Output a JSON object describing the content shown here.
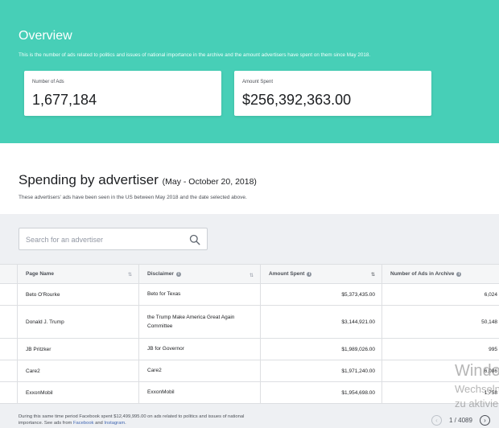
{
  "overview": {
    "title": "Overview",
    "description": "This is the number of ads related to politics and issues of national importance in the archive and the amount advertisers have spent on them since May 2018.",
    "cards": [
      {
        "label": "Number of Ads",
        "value": "1,677,184"
      },
      {
        "label": "Amount Spent",
        "value": "$256,392,363.00"
      }
    ]
  },
  "spending": {
    "title": "Spending by advertiser",
    "date_range": "(May - October 20, 2018)",
    "description": "These advertisers' ads have been seen in the US between May 2018 and the date selected above."
  },
  "search": {
    "placeholder": "Search for an advertiser"
  },
  "table": {
    "headers": [
      "Page Name",
      "Disclaimer",
      "Amount Spent",
      "Number of Ads in Archive"
    ],
    "sort_icon": "⇅",
    "rows": [
      {
        "page": "Beto O'Rourke",
        "disclaimer": "Beto for Texas",
        "amount": "$5,373,435.00",
        "ads": "6,024"
      },
      {
        "page": "Donald J. Trump",
        "disclaimer": "the Trump Make America Great Again Committee",
        "amount": "$3,144,921.00",
        "ads": "50,148"
      },
      {
        "page": "JB Pritzker",
        "disclaimer": "JB for Governor",
        "amount": "$1,989,026.00",
        "ads": "995"
      },
      {
        "page": "Care2",
        "disclaimer": "Care2",
        "amount": "$1,971,240.00",
        "ads": "6,086"
      },
      {
        "page": "ExxonMobil",
        "disclaimer": "ExxonMobil",
        "amount": "$1,954,698.00",
        "ads": "1,758"
      }
    ]
  },
  "footer": {
    "note": "During this same time period Facebook spent $12,499,995.00 on ads related to politics and issues of national importance. See ads from",
    "link1": "Facebook",
    "and": "and",
    "link2": "Instagram",
    "end": "."
  },
  "pagination": {
    "label": "1 / 4089",
    "prev": "‹",
    "next": "›"
  },
  "watermark": {
    "line1": "Windows",
    "line2": "Wechseln",
    "line3": "zu aktivieren"
  }
}
